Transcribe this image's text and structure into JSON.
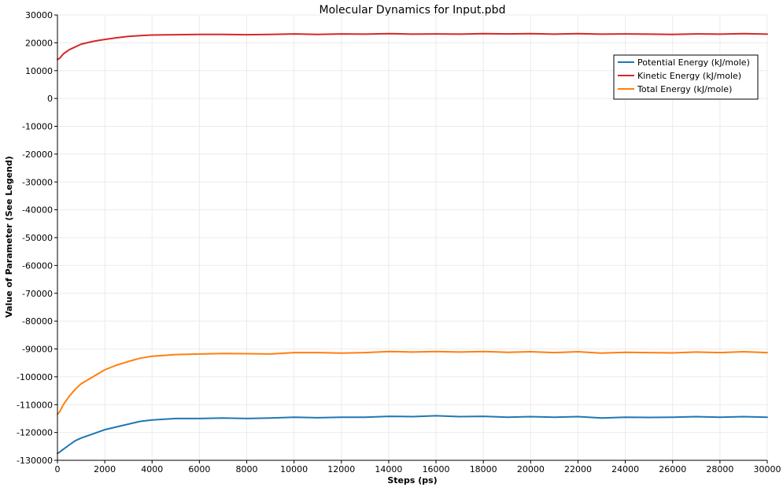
{
  "chart_data": {
    "type": "line",
    "title": "Molecular Dynamics for Input.pbd",
    "xlabel": "Steps (ps)",
    "ylabel": "Value of Parameter (See Legend)",
    "xlim": [
      0,
      30000
    ],
    "ylim": [
      -130000,
      30000
    ],
    "x_ticks": [
      0,
      2000,
      4000,
      6000,
      8000,
      10000,
      12000,
      14000,
      16000,
      18000,
      20000,
      22000,
      24000,
      26000,
      28000,
      30000
    ],
    "y_ticks": [
      30000,
      20000,
      10000,
      0,
      -10000,
      -20000,
      -30000,
      -40000,
      -50000,
      -60000,
      -70000,
      -80000,
      -90000,
      -100000,
      -110000,
      -120000,
      -130000
    ],
    "grid": true,
    "legend_position": "top-right",
    "x": [
      0,
      100,
      250,
      500,
      750,
      1000,
      1500,
      2000,
      2500,
      3000,
      3500,
      4000,
      5000,
      6000,
      7000,
      8000,
      9000,
      10000,
      11000,
      12000,
      13000,
      14000,
      15000,
      16000,
      17000,
      18000,
      19000,
      20000,
      21000,
      22000,
      23000,
      24000,
      25000,
      26000,
      27000,
      28000,
      29000,
      30000
    ],
    "series": [
      {
        "name": "Potential Energy (kJ/mole)",
        "color": "#1f77b4",
        "values": [
          -127500,
          -127000,
          -126000,
          -124500,
          -123000,
          -122000,
          -120500,
          -119000,
          -118000,
          -117000,
          -116000,
          -115500,
          -115000,
          -115000,
          -114800,
          -115000,
          -114800,
          -114500,
          -114700,
          -114500,
          -114500,
          -114200,
          -114300,
          -114000,
          -114300,
          -114200,
          -114500,
          -114300,
          -114500,
          -114300,
          -114800,
          -114500,
          -114600,
          -114500,
          -114300,
          -114500,
          -114300,
          -114500
        ]
      },
      {
        "name": "Kinetic Energy (kJ/mole)",
        "color": "#d62728",
        "values": [
          14000,
          14500,
          16000,
          17500,
          18500,
          19500,
          20500,
          21200,
          21800,
          22300,
          22600,
          22800,
          22900,
          23000,
          23000,
          22900,
          23000,
          23200,
          23000,
          23200,
          23100,
          23300,
          23100,
          23200,
          23100,
          23300,
          23200,
          23300,
          23100,
          23300,
          23100,
          23200,
          23100,
          23000,
          23200,
          23100,
          23300,
          23100
        ]
      },
      {
        "name": "Total Energy (kJ/mole)",
        "color": "#ff7f0e",
        "values": [
          -113500,
          -112500,
          -110000,
          -107000,
          -104500,
          -102500,
          -100000,
          -97500,
          -95800,
          -94500,
          -93300,
          -92600,
          -92000,
          -91800,
          -91600,
          -91700,
          -91800,
          -91300,
          -91300,
          -91500,
          -91300,
          -90900,
          -91100,
          -90900,
          -91100,
          -90900,
          -91200,
          -91000,
          -91300,
          -91000,
          -91500,
          -91200,
          -91300,
          -91400,
          -91100,
          -91300,
          -91000,
          -91300
        ]
      }
    ]
  }
}
